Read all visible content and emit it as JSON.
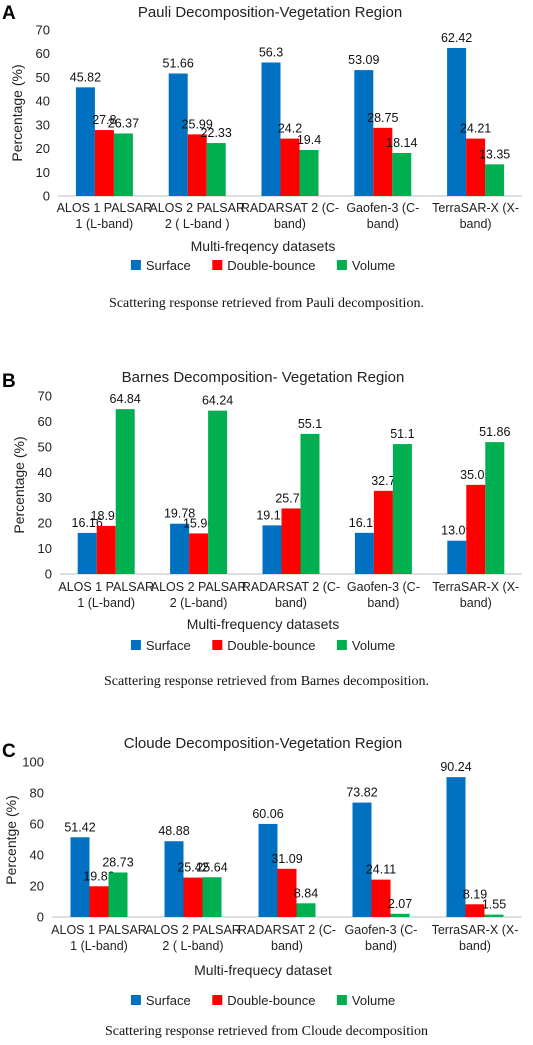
{
  "chart_data": [
    {
      "type": "bar",
      "panel_label": "A",
      "title": "Pauli Decomposition-Vegetation Region",
      "xlabel": "Multi-freqency datasets",
      "ylabel": "Percentage (%)",
      "ylim": [
        0,
        70
      ],
      "yticks": [
        0,
        10,
        20,
        30,
        40,
        50,
        60,
        70
      ],
      "categories": [
        [
          "ALOS 1 PALSAR",
          "1 (L-band)"
        ],
        [
          "ALOS 2 PALSAR",
          "2 ( L-band )"
        ],
        [
          "RADARSAT 2 (C-",
          "band)"
        ],
        [
          "Gaofen-3 (C-",
          "band)"
        ],
        [
          "TerraSAR-X (X-",
          "band)"
        ]
      ],
      "series": [
        {
          "name": "Surface",
          "color": "#0070C0",
          "values": [
            45.82,
            51.66,
            56.3,
            53.09,
            62.42
          ]
        },
        {
          "name": "Double-bounce",
          "color": "#FF0000",
          "values": [
            27.8,
            25.99,
            24.2,
            28.75,
            24.21
          ]
        },
        {
          "name": "Volume",
          "color": "#00B050",
          "values": [
            26.37,
            22.33,
            19.4,
            18.14,
            13.35
          ]
        }
      ],
      "grid": false,
      "legend_position": "bottom",
      "caption": "Scattering response retrieved from Pauli decomposition."
    },
    {
      "type": "bar",
      "panel_label": "B",
      "title": "Barnes Decomposition- Vegetation Region",
      "xlabel": "Multi-frequency datasets",
      "ylabel": "Percentage (%)",
      "ylim": [
        0,
        70
      ],
      "yticks": [
        0,
        10,
        20,
        30,
        40,
        50,
        60,
        70
      ],
      "categories": [
        [
          "ALOS 1 PALSAR",
          "1 (L-band)"
        ],
        [
          "ALOS 2 PALSAR",
          "2 (L-band)"
        ],
        [
          "RADARSAT 2 (C-",
          "band)"
        ],
        [
          "Gaofen-3 (C-",
          "band)"
        ],
        [
          "TerraSAR-X (X-",
          "band)"
        ]
      ],
      "series": [
        {
          "name": "Surface",
          "color": "#0070C0",
          "values": [
            16.16,
            19.78,
            19.12,
            16.19,
            13.09
          ]
        },
        {
          "name": "Double-bounce",
          "color": "#FF0000",
          "values": [
            18.92,
            15.96,
            25.78,
            32.7,
            35.05
          ]
        },
        {
          "name": "Volume",
          "color": "#00B050",
          "values": [
            64.84,
            64.24,
            55.1,
            51.1,
            51.86
          ]
        }
      ],
      "grid": false,
      "legend_position": "bottom",
      "caption": "Scattering response retrieved from Barnes decomposition."
    },
    {
      "type": "bar",
      "panel_label": "C",
      "title": "Cloude Decomposition-Vegetation Region",
      "xlabel": "Multi-frequecy dataset",
      "ylabel": "Percentge (%)",
      "ylim": [
        0,
        100
      ],
      "yticks": [
        0,
        20,
        40,
        60,
        80,
        100
      ],
      "categories": [
        [
          "ALOS 1 PALSAR",
          "1 (L-band)"
        ],
        [
          "ALOS 2 PALSAR",
          "2 ( L-band)"
        ],
        [
          "RADARSAT 2 (C-",
          "band)"
        ],
        [
          "Gaofen-3 (C-",
          "band)"
        ],
        [
          "TerraSAR-X (X-",
          "band)"
        ]
      ],
      "series": [
        {
          "name": "Surface",
          "color": "#0070C0",
          "values": [
            51.42,
            48.88,
            60.06,
            73.82,
            90.24
          ]
        },
        {
          "name": "Double-bounce",
          "color": "#FF0000",
          "values": [
            19.83,
            25.42,
            31.09,
            24.11,
            8.19
          ]
        },
        {
          "name": "Volume",
          "color": "#00B050",
          "values": [
            28.73,
            25.64,
            8.84,
            2.07,
            1.55
          ]
        }
      ],
      "grid": false,
      "legend_position": "bottom",
      "caption": "Scattering response retrieved from Cloude decomposition"
    }
  ]
}
